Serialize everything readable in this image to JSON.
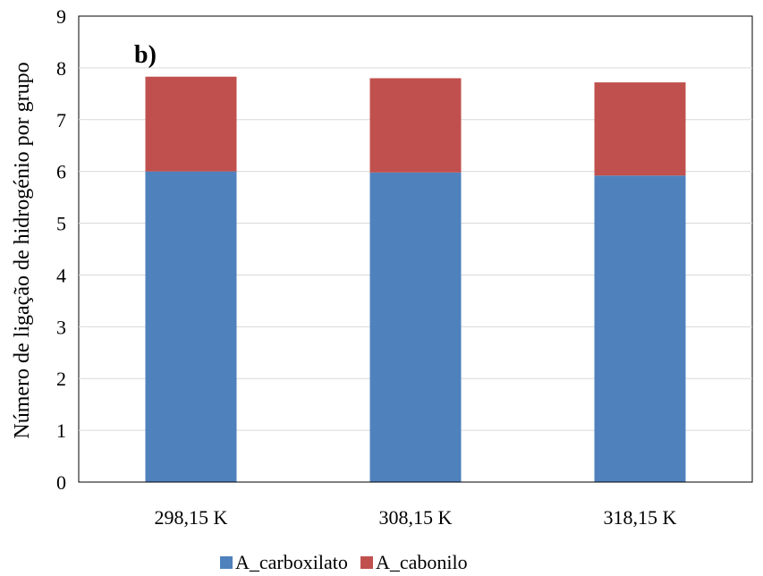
{
  "chart_data": {
    "type": "bar",
    "stacked": true,
    "panel_label": "b)",
    "categories": [
      "298,15 K",
      "308,15 K",
      "318,15 K"
    ],
    "series": [
      {
        "name": "A_carboxilato",
        "color": "#4F81BD",
        "values": [
          6.0,
          5.98,
          5.92
        ]
      },
      {
        "name": "A_cabonilo",
        "color": "#C0504D",
        "values": [
          1.83,
          1.82,
          1.8
        ]
      }
    ],
    "xlabel": "",
    "ylabel": "Número de ligação de hidrogénio por grupo",
    "ylim": [
      0,
      9
    ],
    "yticks": [
      "0",
      "1",
      "2",
      "3",
      "4",
      "5",
      "6",
      "7",
      "8",
      "9"
    ],
    "grid": true,
    "legend": "bottom"
  }
}
